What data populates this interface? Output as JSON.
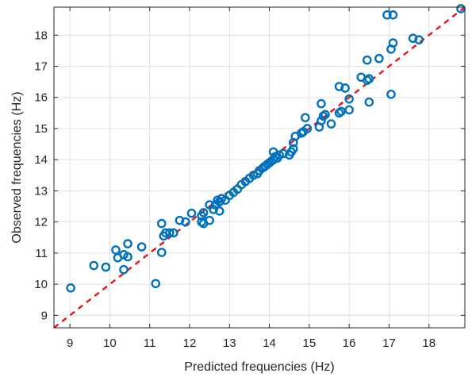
{
  "chart_data": {
    "type": "scatter",
    "title": "",
    "xlabel": "Predicted frequencies (Hz)",
    "ylabel": "Observed frequencies (Hz)",
    "xlim": [
      8.6,
      18.9
    ],
    "ylim": [
      8.6,
      18.9
    ],
    "xticks": [
      9,
      10,
      11,
      12,
      13,
      14,
      15,
      16,
      17,
      18
    ],
    "yticks": [
      9,
      10,
      11,
      12,
      13,
      14,
      15,
      16,
      17,
      18
    ],
    "grid": true,
    "colors": {
      "points": "#0072BD",
      "reference_line": "#E8151B"
    },
    "reference_line": {
      "type": "y=x",
      "style": "dashed"
    },
    "series": [
      {
        "points": [
          [
            9.02,
            9.88
          ],
          [
            9.6,
            10.6
          ],
          [
            9.9,
            10.55
          ],
          [
            10.15,
            11.1
          ],
          [
            10.2,
            10.85
          ],
          [
            10.35,
            10.95
          ],
          [
            10.45,
            10.88
          ],
          [
            10.45,
            11.3
          ],
          [
            10.35,
            10.47
          ],
          [
            10.8,
            11.2
          ],
          [
            11.15,
            10.02
          ],
          [
            11.3,
            11.02
          ],
          [
            11.3,
            11.95
          ],
          [
            11.35,
            11.55
          ],
          [
            11.4,
            11.65
          ],
          [
            11.5,
            11.65
          ],
          [
            11.6,
            11.65
          ],
          [
            11.75,
            12.05
          ],
          [
            11.9,
            12.0
          ],
          [
            12.05,
            12.28
          ],
          [
            12.3,
            12.0
          ],
          [
            12.3,
            12.2
          ],
          [
            12.35,
            12.3
          ],
          [
            12.35,
            11.95
          ],
          [
            12.5,
            12.05
          ],
          [
            12.5,
            12.55
          ],
          [
            12.6,
            12.4
          ],
          [
            12.65,
            12.55
          ],
          [
            12.7,
            12.7
          ],
          [
            12.75,
            12.65
          ],
          [
            12.75,
            12.35
          ],
          [
            12.8,
            12.75
          ],
          [
            12.9,
            12.7
          ],
          [
            13.0,
            12.85
          ],
          [
            13.1,
            12.95
          ],
          [
            13.2,
            13.05
          ],
          [
            13.3,
            13.2
          ],
          [
            13.4,
            13.3
          ],
          [
            13.5,
            13.4
          ],
          [
            13.6,
            13.5
          ],
          [
            13.7,
            13.55
          ],
          [
            13.75,
            13.65
          ],
          [
            13.85,
            13.75
          ],
          [
            13.9,
            13.8
          ],
          [
            13.95,
            13.85
          ],
          [
            14.0,
            13.9
          ],
          [
            14.05,
            13.95
          ],
          [
            14.1,
            14.0
          ],
          [
            14.15,
            14.1
          ],
          [
            14.2,
            14.05
          ],
          [
            14.1,
            14.25
          ],
          [
            14.25,
            14.15
          ],
          [
            14.35,
            14.2
          ],
          [
            14.5,
            14.15
          ],
          [
            14.55,
            14.25
          ],
          [
            14.6,
            14.35
          ],
          [
            14.6,
            14.55
          ],
          [
            14.65,
            14.75
          ],
          [
            14.8,
            14.85
          ],
          [
            14.85,
            14.9
          ],
          [
            14.95,
            15.0
          ],
          [
            14.9,
            15.35
          ],
          [
            15.25,
            15.05
          ],
          [
            15.3,
            15.25
          ],
          [
            15.35,
            15.4
          ],
          [
            15.4,
            15.45
          ],
          [
            15.3,
            15.8
          ],
          [
            15.55,
            15.15
          ],
          [
            15.75,
            15.5
          ],
          [
            15.8,
            15.55
          ],
          [
            15.75,
            16.35
          ],
          [
            15.9,
            16.3
          ],
          [
            16.0,
            15.95
          ],
          [
            16.0,
            15.6
          ],
          [
            16.3,
            16.65
          ],
          [
            16.45,
            16.55
          ],
          [
            16.5,
            16.6
          ],
          [
            16.5,
            15.85
          ],
          [
            16.45,
            17.2
          ],
          [
            16.75,
            17.25
          ],
          [
            16.95,
            18.65
          ],
          [
            17.1,
            18.65
          ],
          [
            17.05,
            17.55
          ],
          [
            17.1,
            17.75
          ],
          [
            17.05,
            16.1
          ],
          [
            17.6,
            17.9
          ],
          [
            17.75,
            17.85
          ],
          [
            18.8,
            18.85
          ]
        ]
      }
    ]
  }
}
